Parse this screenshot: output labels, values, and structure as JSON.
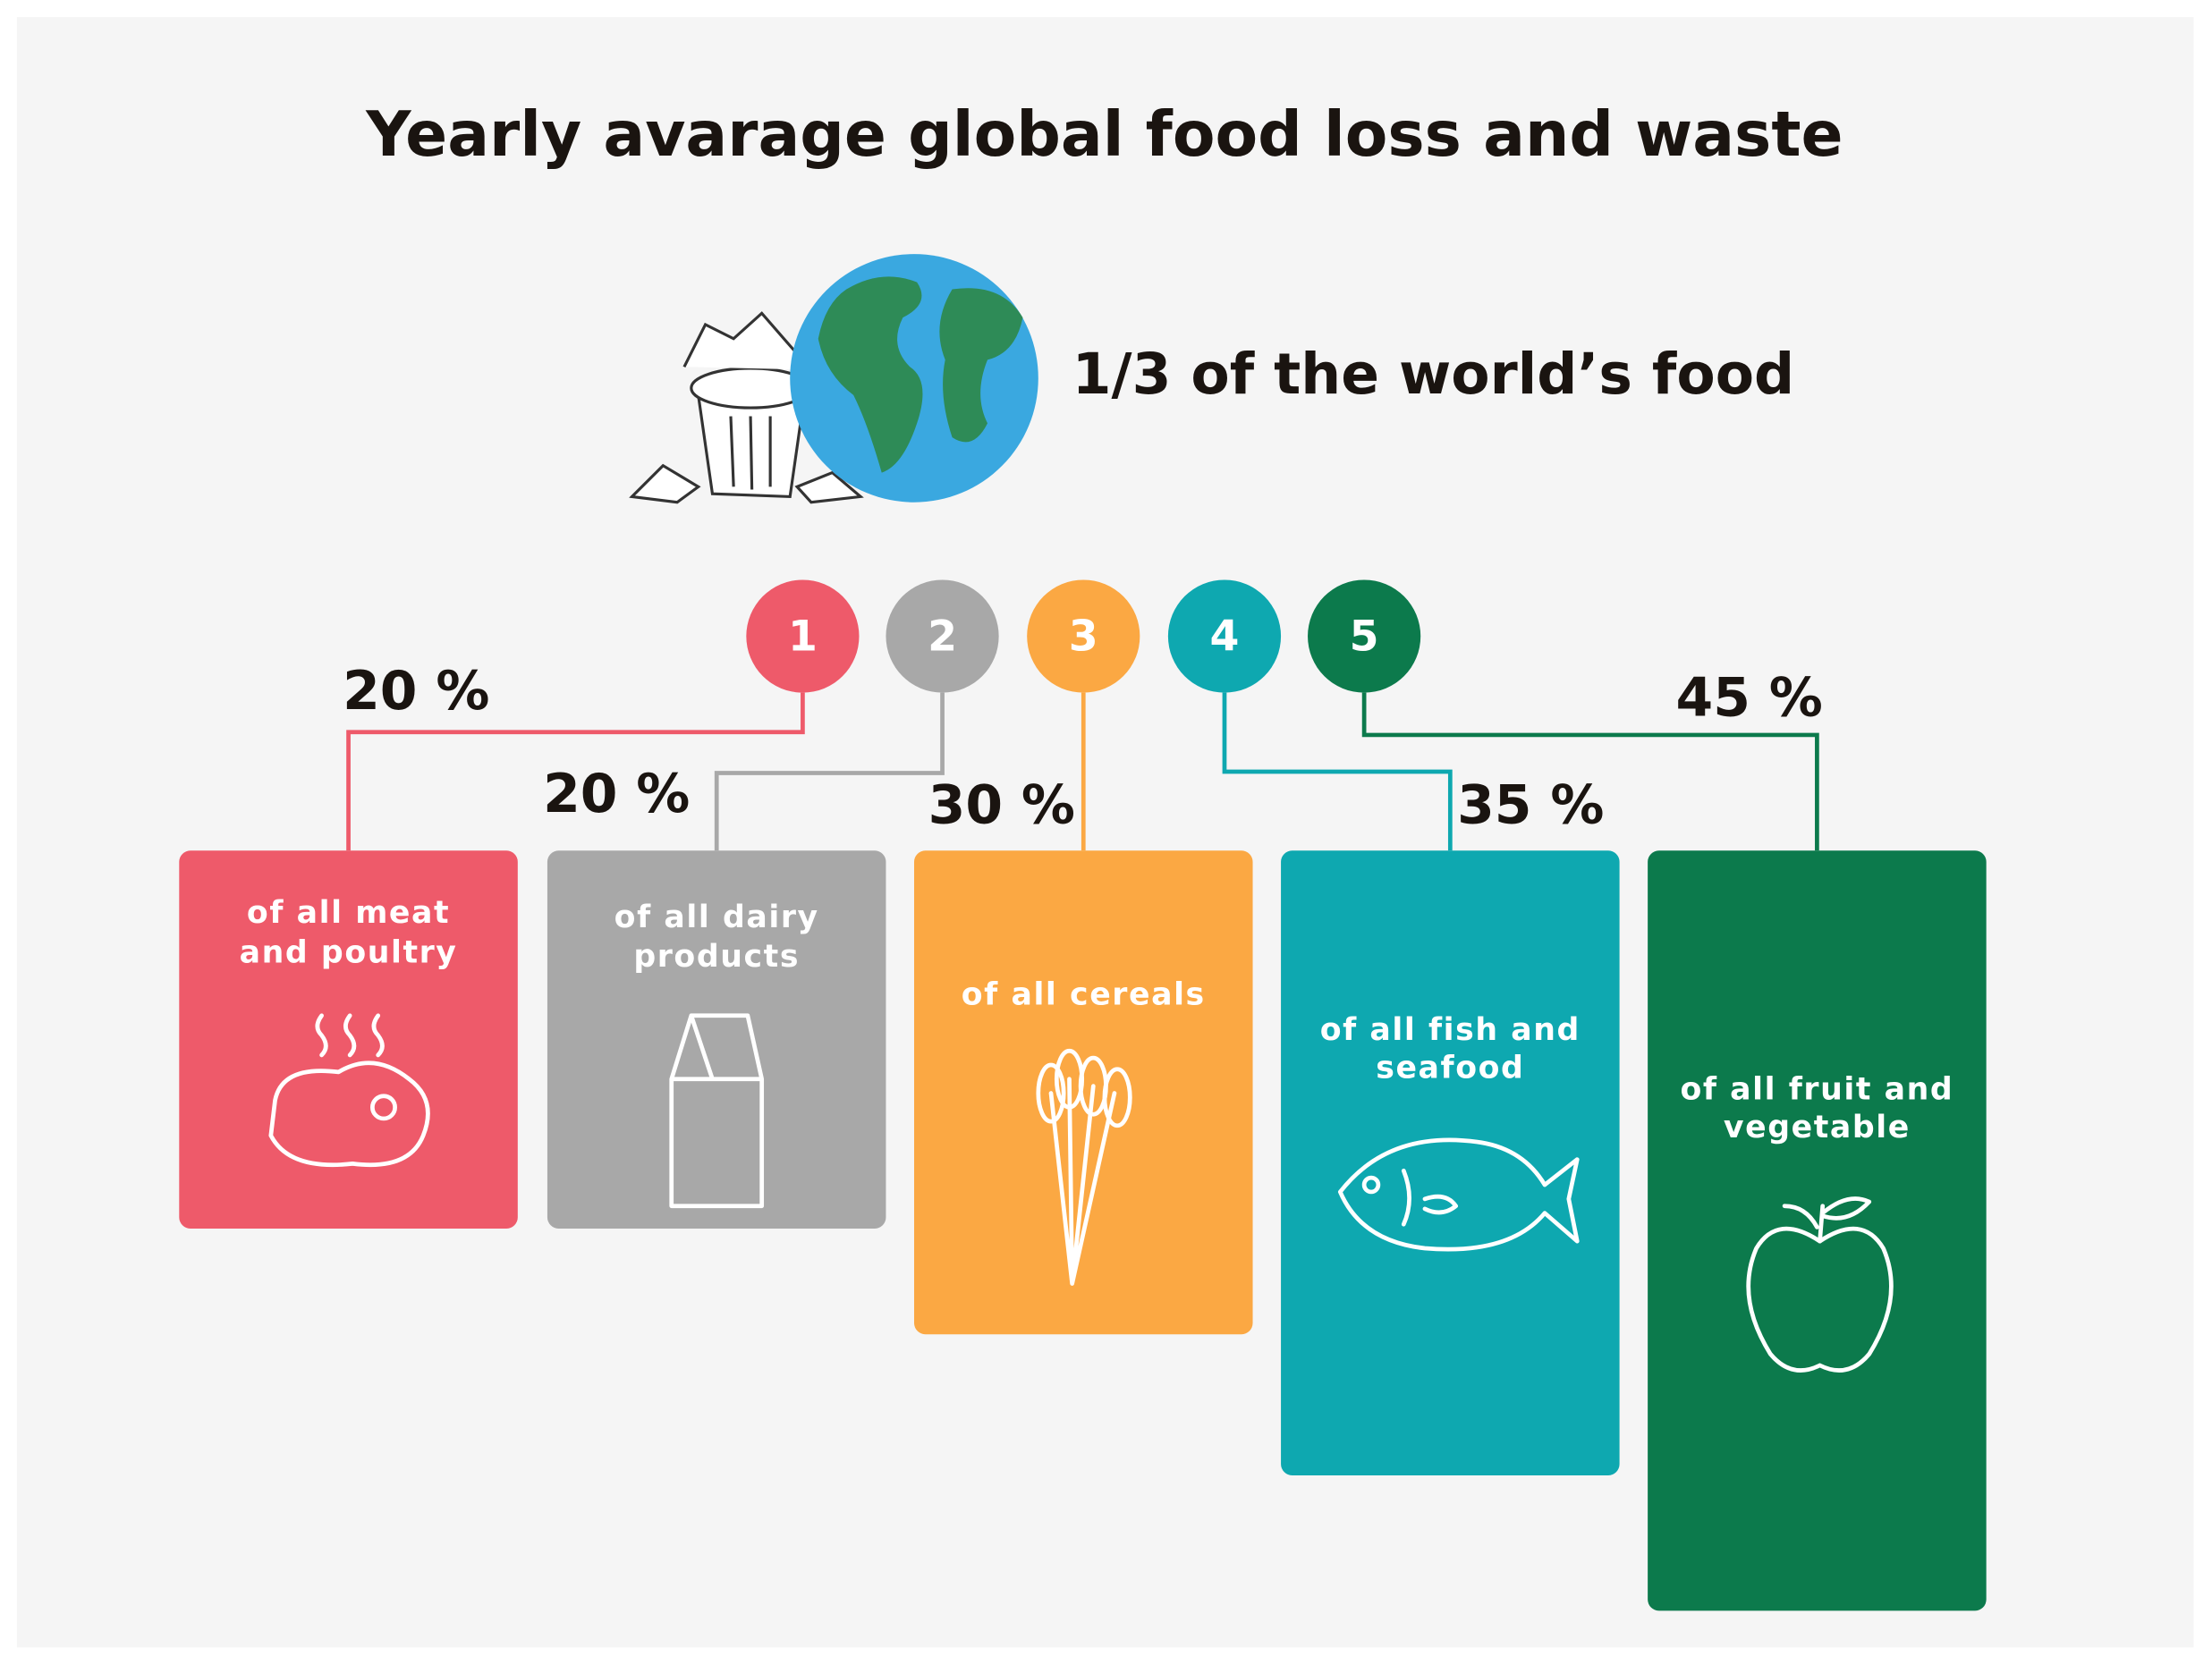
{
  "title": "Yearly avarage global food loss and waste",
  "headline": "1/3 of the world’s food",
  "items": [
    {
      "number": "1",
      "percent": "20 %",
      "label": [
        "of all meat",
        "and poultry"
      ],
      "color": "#ee5a6a"
    },
    {
      "number": "2",
      "percent": "20 %",
      "label": [
        "of all dairy",
        "products"
      ],
      "color": "#a8a8a8"
    },
    {
      "number": "3",
      "percent": "30 %",
      "label": [
        "of all cereals"
      ],
      "color": "#fba843"
    },
    {
      "number": "4",
      "percent": "35 %",
      "label": [
        "of all fish and",
        "seafood"
      ],
      "color": "#0ea8b0"
    },
    {
      "number": "5",
      "percent": "45 %",
      "label": [
        "of all fruit and",
        "vegetable"
      ],
      "color": "#0c7a4c"
    }
  ]
}
